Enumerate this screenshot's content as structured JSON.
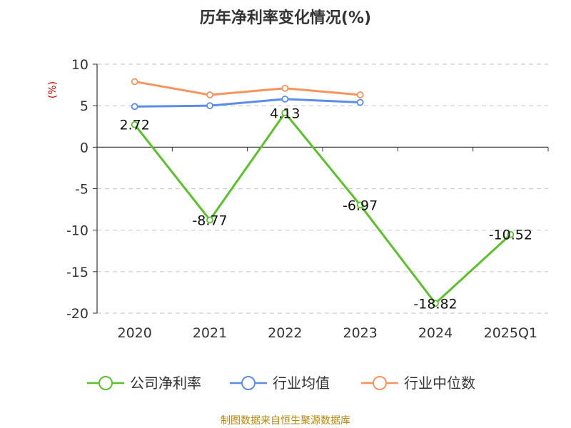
{
  "chart_data": {
    "type": "line",
    "title": "历年净利率变化情况(%)",
    "ylabel": "(%)",
    "categories": [
      "2020",
      "2021",
      "2022",
      "2023",
      "2024",
      "2025Q1"
    ],
    "ylim": [
      -20,
      10
    ],
    "yticks": [
      10,
      5,
      0,
      -5,
      -10,
      -15,
      -20
    ],
    "grid": true,
    "legend_position": "bottom",
    "series": [
      {
        "name": "公司净利率",
        "color": "#5bc12a",
        "values": [
          2.72,
          -8.77,
          4.13,
          -6.97,
          -18.82,
          -10.52
        ],
        "labels": [
          "2.72",
          "-8.77",
          "4.13",
          "-6.97",
          "-18.82",
          "-10.52"
        ]
      },
      {
        "name": "行业均值",
        "color": "#5b8ee6",
        "values": [
          4.9,
          5.0,
          5.8,
          5.4,
          null,
          null
        ]
      },
      {
        "name": "行业中位数",
        "color": "#f7935c",
        "values": [
          7.9,
          6.3,
          7.1,
          6.3,
          null,
          null
        ]
      }
    ]
  },
  "footer": {
    "source": "制图数据来自恒生聚源数据库"
  }
}
